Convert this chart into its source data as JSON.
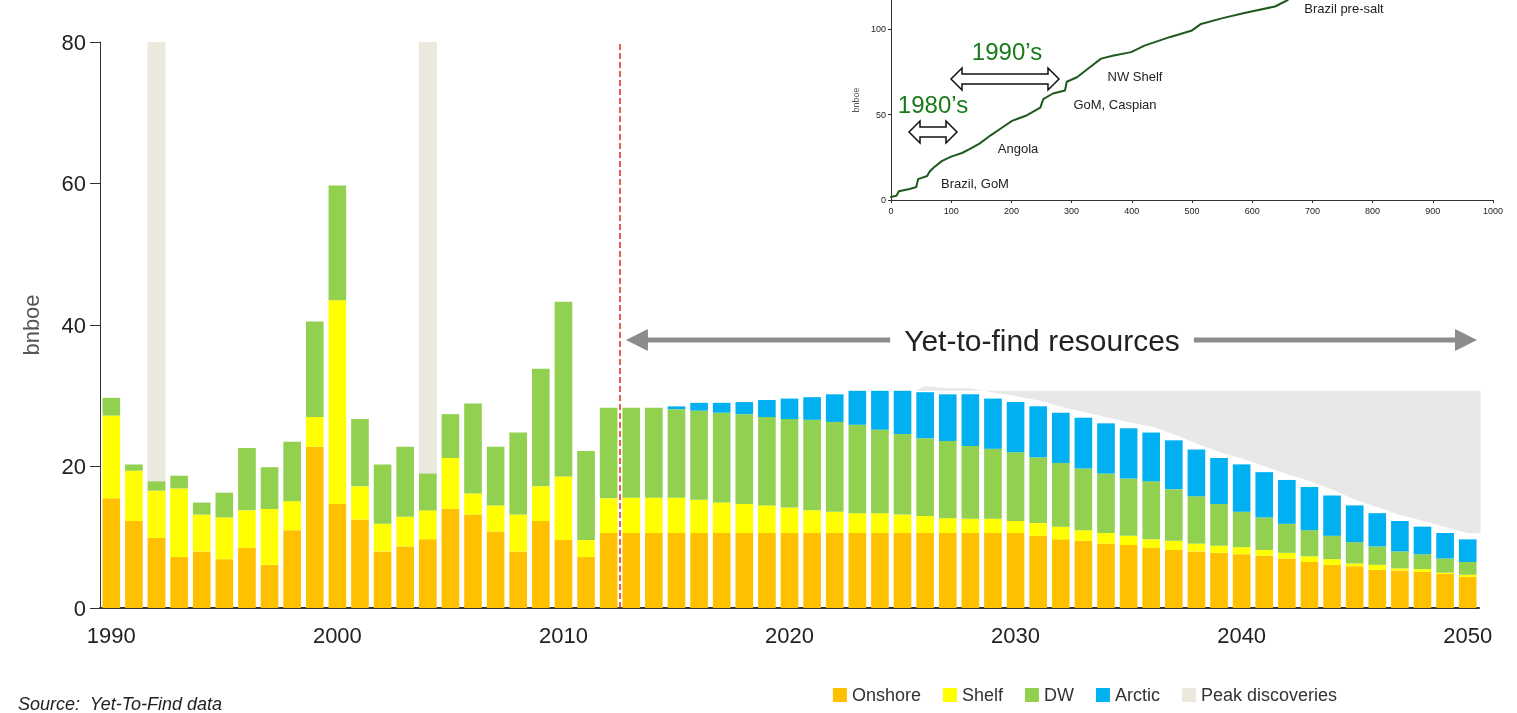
{
  "chart_data": [
    {
      "type": "bar",
      "ylabel": "bnboe",
      "stacked": true,
      "legend": "bottom right",
      "x": [
        1990,
        1991,
        1992,
        1993,
        1994,
        1995,
        1996,
        1997,
        1998,
        1999,
        2000,
        2001,
        2002,
        2003,
        2004,
        2005,
        2006,
        2007,
        2008,
        2009,
        2010,
        2011,
        2012,
        2013,
        2014,
        2015,
        2016,
        2017,
        2018,
        2019,
        2020,
        2021,
        2022,
        2023,
        2024,
        2025,
        2026,
        2027,
        2028,
        2029,
        2030,
        2031,
        2032,
        2033,
        2034,
        2035,
        2036,
        2037,
        2038,
        2039,
        2040,
        2041,
        2042,
        2043,
        2044,
        2045,
        2046,
        2047,
        2048,
        2049,
        2050
      ],
      "xlim": [
        1989.5,
        2050.5
      ],
      "xticks": [
        1990,
        2000,
        2010,
        2020,
        2030,
        2040,
        2050
      ],
      "ylim": [
        0,
        80
      ],
      "yticks": [
        0,
        20,
        40,
        60,
        80
      ],
      "series": [
        {
          "name": "Onshore",
          "color": "#ffc000",
          "values": [
            15.5,
            12.3,
            9.9,
            7.2,
            8.0,
            6.9,
            8.5,
            6.1,
            11.0,
            22.8,
            14.7,
            12.5,
            8.0,
            8.7,
            9.7,
            14.0,
            13.2,
            10.8,
            8.0,
            12.3,
            9.6,
            7.2,
            10.6,
            10.6,
            10.6,
            10.6,
            10.6,
            10.6,
            10.6,
            10.6,
            10.6,
            10.6,
            10.6,
            10.6,
            10.6,
            10.6,
            10.6,
            10.6,
            10.6,
            10.6,
            10.6,
            10.2,
            9.7,
            9.5,
            9.1,
            8.9,
            8.5,
            8.2,
            8.0,
            7.8,
            7.6,
            7.4,
            7.0,
            6.5,
            6.1,
            5.9,
            5.4,
            5.3,
            5.1,
            4.8,
            4.4
          ]
        },
        {
          "name": "Shelf",
          "color": "#ffff00",
          "values": [
            11.7,
            7.1,
            6.7,
            9.7,
            5.2,
            5.9,
            5.3,
            7.9,
            4.1,
            4.2,
            28.8,
            4.7,
            3.9,
            4.2,
            4.1,
            7.2,
            3.0,
            3.7,
            5.2,
            4.9,
            9.0,
            2.4,
            4.9,
            5.0,
            5.0,
            5.0,
            4.7,
            4.3,
            4.1,
            3.9,
            3.6,
            3.2,
            3.0,
            2.8,
            2.8,
            2.6,
            2.4,
            2.1,
            2.0,
            2.0,
            1.7,
            1.8,
            1.8,
            1.5,
            1.5,
            1.3,
            1.2,
            1.3,
            1.1,
            1.0,
            1.0,
            0.8,
            0.8,
            0.8,
            0.8,
            0.4,
            0.7,
            0.3,
            0.4,
            0.2,
            0.3
          ]
        },
        {
          "name": "DW",
          "color": "#92d050",
          "values": [
            2.5,
            0.9,
            1.3,
            1.8,
            1.7,
            3.5,
            8.8,
            5.9,
            8.4,
            13.5,
            16.2,
            9.5,
            8.4,
            9.9,
            5.2,
            6.2,
            12.7,
            8.3,
            11.6,
            16.6,
            24.7,
            12.6,
            12.8,
            12.7,
            12.7,
            12.5,
            12.6,
            12.7,
            12.7,
            12.5,
            12.5,
            12.8,
            12.7,
            12.5,
            11.8,
            11.4,
            11.0,
            10.9,
            10.3,
            9.9,
            9.7,
            9.3,
            9.0,
            8.7,
            8.4,
            8.1,
            8.2,
            7.3,
            6.7,
            5.9,
            5.0,
            4.6,
            4.1,
            3.7,
            3.3,
            3.0,
            2.6,
            2.4,
            2.1,
            2.0,
            1.8
          ]
        },
        {
          "name": "Arctic",
          "color": "#00b0f0",
          "values": [
            null,
            null,
            null,
            null,
            null,
            null,
            null,
            null,
            null,
            null,
            null,
            null,
            null,
            null,
            null,
            null,
            null,
            null,
            null,
            null,
            null,
            null,
            null,
            null,
            null,
            0.4,
            1.1,
            1.4,
            1.7,
            2.4,
            2.9,
            3.2,
            3.9,
            4.8,
            5.5,
            6.1,
            6.5,
            6.6,
            7.3,
            7.1,
            7.1,
            7.2,
            7.1,
            7.2,
            7.1,
            7.1,
            6.9,
            6.9,
            6.6,
            6.5,
            6.7,
            6.4,
            6.2,
            6.1,
            5.7,
            5.2,
            4.7,
            4.3,
            3.9,
            3.6,
            3.2
          ]
        }
      ],
      "bands": [
        {
          "axis": "x",
          "from": 1991.6,
          "to": 1992.4,
          "label": "Peak discoveries",
          "color": "#ebe8de"
        },
        {
          "axis": "x",
          "from": 2003.6,
          "to": 2004.4,
          "color": "#ebe8de"
        }
      ],
      "ref_lines": [
        {
          "axis": "x",
          "value": 2012.5,
          "color": "#e8291c",
          "line_style": "dashed"
        }
      ],
      "annotations": [
        "Yet-to-find resources",
        "Source:  Yet-To-Find data"
      ]
    },
    {
      "type": "line",
      "ylabel": "bnboe",
      "marker": "none",
      "line_style": "solid",
      "xlim": [
        0,
        1000
      ],
      "xticks": [
        0,
        100,
        200,
        300,
        400,
        500,
        600,
        700,
        800,
        900,
        1000
      ],
      "ylim": [
        0,
        117
      ],
      "yticks": [
        0,
        50,
        100
      ],
      "series": [
        {
          "color": "#1e5a1e",
          "x": [
            0,
            9,
            13,
            31,
            42,
            45,
            60,
            64,
            71,
            85,
            100,
            118,
            132,
            147,
            165,
            183,
            201,
            226,
            248,
            253,
            269,
            289,
            292,
            309,
            333,
            349,
            370,
            399,
            421,
            464,
            500,
            515,
            551,
            587,
            638,
            659
          ],
          "values": [
            1.8,
            2.5,
            5.1,
            6.4,
            7.6,
            12.2,
            14,
            16.5,
            19,
            22.9,
            25.4,
            27.5,
            30,
            33,
            37.7,
            42,
            46.3,
            49.6,
            54,
            59,
            62.3,
            64.1,
            69.2,
            71.8,
            78.4,
            82.7,
            84.5,
            86.5,
            90.3,
            95.4,
            99.2,
            103,
            106.4,
            109.4,
            113.2,
            117
          ]
        }
      ],
      "annotations": [
        "Brazil pre-salt",
        "NW Shelf",
        "GoM, Caspian",
        "Angola",
        "Brazil, GoM",
        "1990’s",
        "1980’s"
      ]
    }
  ]
}
